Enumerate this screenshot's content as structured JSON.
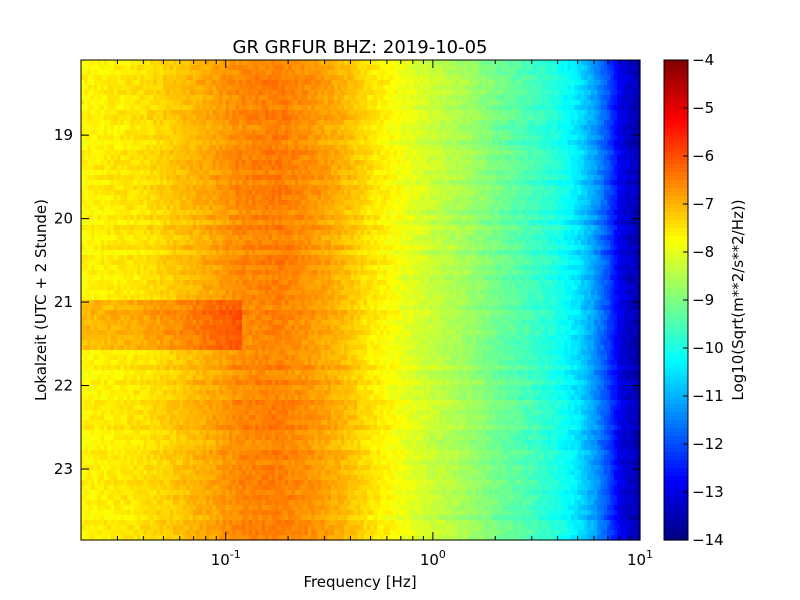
{
  "chart_data": {
    "type": "heatmap",
    "title": "GR GRFUR BHZ: 2019-10-05",
    "xlabel": "Frequency [Hz]",
    "ylabel": "Lokalzeit (UTC + 2 Stunde)",
    "x_scale": "log",
    "xlim": [
      0.02,
      10
    ],
    "ylim": [
      23.85,
      18.1
    ],
    "x_ticks": [
      {
        "base": "10",
        "exp": "-1",
        "value": 0.1
      },
      {
        "base": "10",
        "exp": "0",
        "value": 1
      },
      {
        "base": "10",
        "exp": "1",
        "value": 10
      }
    ],
    "y_ticks": [
      {
        "label": "19",
        "value": 19
      },
      {
        "label": "20",
        "value": 20
      },
      {
        "label": "21",
        "value": 21
      },
      {
        "label": "22",
        "value": 22
      },
      {
        "label": "23",
        "value": 23
      }
    ],
    "colorbar": {
      "label": "Log10(Sqrt(m**2/s**2/Hz))",
      "min": -14,
      "max": -4,
      "colormap": "jet",
      "ticks": [
        "-4",
        "-5",
        "-6",
        "-7",
        "-8",
        "-9",
        "-10",
        "-11",
        "-12",
        "-13",
        "-14"
      ]
    },
    "spectrum_profile": {
      "frequencies": [
        0.02,
        0.04,
        0.06,
        0.12,
        0.18,
        0.25,
        0.35,
        0.5,
        0.7,
        1.0,
        1.5,
        2.0,
        3.0,
        4.0,
        5.0,
        6.0,
        7.0,
        8.0,
        10.0
      ],
      "values": [
        -7.7,
        -7.5,
        -7.2,
        -6.6,
        -6.5,
        -6.7,
        -7.0,
        -7.5,
        -7.9,
        -8.3,
        -8.7,
        -9.1,
        -9.6,
        -10.0,
        -10.5,
        -11.2,
        -12.0,
        -13.0,
        -13.6
      ]
    },
    "anomalies": [
      {
        "time_start": 21.0,
        "time_end": 21.6,
        "freq_start": 0.02,
        "freq_end": 0.12,
        "delta": 0.6
      }
    ]
  }
}
